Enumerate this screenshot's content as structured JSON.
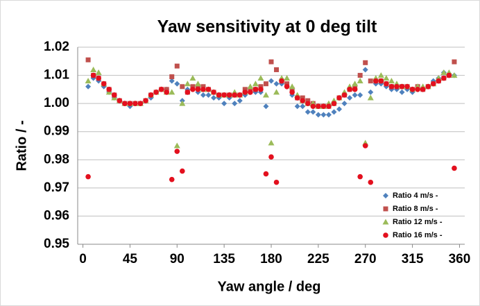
{
  "chart_data": {
    "type": "scatter",
    "title": "Yaw sensitivity at 0 deg tilt",
    "x_label": "Yaw angle / deg",
    "y_label": "Ratio / -",
    "xlim": [
      -5,
      365
    ],
    "xticks": [
      0,
      45,
      90,
      135,
      180,
      225,
      270,
      315,
      360
    ],
    "ylim": [
      0.95,
      1.02
    ],
    "yticks": [
      1.02,
      1.01,
      {
        "value": 1.0,
        "label": "1.00"
      },
      0.99,
      0.98,
      0.97,
      0.96,
      0.95
    ],
    "grid": true,
    "legend": "lower right",
    "x": [
      5,
      10,
      15,
      20,
      25,
      30,
      35,
      40,
      45,
      50,
      55,
      60,
      65,
      70,
      75,
      80,
      85,
      90,
      95,
      100,
      105,
      110,
      115,
      120,
      125,
      130,
      135,
      140,
      145,
      150,
      155,
      160,
      165,
      170,
      175,
      180,
      185,
      190,
      195,
      200,
      205,
      210,
      215,
      220,
      225,
      230,
      235,
      240,
      245,
      250,
      255,
      260,
      265,
      270,
      275,
      280,
      285,
      290,
      295,
      300,
      305,
      310,
      315,
      320,
      325,
      330,
      335,
      340,
      345,
      350,
      355
    ],
    "series": [
      {
        "name": "Ratio 4 m/s -",
        "color": "#4f81bd",
        "marker": "diamond",
        "values": [
          1.006,
          1.009,
          1.008,
          1.006,
          1.004,
          1.002,
          1.001,
          1.0,
          0.999,
          1.0,
          1.0,
          1.001,
          1.002,
          1.004,
          1.005,
          1.005,
          1.008,
          1.007,
          1.001,
          1.005,
          1.005,
          1.004,
          1.003,
          1.003,
          1.002,
          1.002,
          1.0,
          1.002,
          1.0,
          1.001,
          1.003,
          1.004,
          1.004,
          1.004,
          0.999,
          1.008,
          1.007,
          1.007,
          1.006,
          1.003,
          0.999,
          0.999,
          0.997,
          0.997,
          0.996,
          0.996,
          0.996,
          0.997,
          0.998,
          1.0,
          1.002,
          1.003,
          1.003,
          1.012,
          1.004,
          1.007,
          1.007,
          1.006,
          1.005,
          1.005,
          1.004,
          1.005,
          1.004,
          1.005,
          1.005,
          1.006,
          1.008,
          1.009,
          1.011,
          1.01,
          1.01
        ]
      },
      {
        "name": "Ratio 8 m/s -",
        "color": "#c0504d",
        "marker": "square",
        "values": [
          1.0155,
          1.01,
          1.009,
          1.007,
          1.005,
          1.003,
          1.001,
          1.0,
          1.0,
          1.0,
          1.0,
          1.001,
          1.003,
          1.004,
          1.005,
          1.005,
          1.0095,
          1.0133,
          1.006,
          1.004,
          1.006,
          1.006,
          1.006,
          1.005,
          1.004,
          1.003,
          1.003,
          1.003,
          1.003,
          1.003,
          1.005,
          1.005,
          1.005,
          1.006,
          1.007,
          1.0148,
          1.012,
          1.008,
          1.007,
          1.005,
          1.002,
          1.002,
          1.001,
          1.0,
          0.999,
          0.999,
          0.999,
          1.0,
          1.002,
          1.003,
          1.005,
          1.006,
          1.01,
          1.0145,
          1.008,
          1.008,
          1.008,
          1.007,
          1.006,
          1.006,
          1.006,
          1.006,
          1.005,
          1.006,
          1.005,
          1.006,
          1.007,
          1.008,
          1.009,
          1.01,
          1.0148
        ]
      },
      {
        "name": "Ratio 12 m/s -",
        "color": "#9bbb59",
        "marker": "triangle",
        "values": [
          1.008,
          1.012,
          1.011,
          1.007,
          1.004,
          1.002,
          1.001,
          1.0,
          1.0,
          1.0,
          1.0,
          1.001,
          1.003,
          1.004,
          1.005,
          1.004,
          1.004,
          0.985,
          1.0,
          1.007,
          1.009,
          1.007,
          1.005,
          1.005,
          1.004,
          1.003,
          1.003,
          1.003,
          1.004,
          1.003,
          1.004,
          1.006,
          1.007,
          1.009,
          1.003,
          0.986,
          1.004,
          1.009,
          1.009,
          1.006,
          1.003,
          1.001,
          1.0,
          1.0,
          0.999,
          0.999,
          1.0,
          1.001,
          1.002,
          1.004,
          1.006,
          1.007,
          1.008,
          0.986,
          1.002,
          1.009,
          1.01,
          1.009,
          1.008,
          1.007,
          1.006,
          1.006,
          1.005,
          1.006,
          1.006,
          1.006,
          1.007,
          1.009,
          1.011,
          1.011,
          1.01
        ]
      },
      {
        "name": "Ratio 16 m/s -",
        "color": "#e3101e",
        "marker": "circle",
        "values": [
          0.974,
          1.01,
          1.009,
          1.007,
          1.005,
          1.003,
          1.001,
          1.0,
          1.0,
          1.0,
          1.0,
          1.001,
          1.003,
          1.004,
          1.005,
          1.004,
          0.973,
          0.983,
          0.976,
          1.004,
          1.005,
          1.005,
          1.005,
          1.005,
          1.004,
          1.003,
          1.003,
          1.003,
          1.003,
          1.003,
          1.004,
          1.004,
          1.005,
          1.005,
          0.975,
          0.981,
          0.972,
          1.008,
          1.006,
          1.004,
          1.002,
          1.001,
          1.0,
          0.999,
          0.999,
          0.999,
          0.999,
          1.0,
          1.002,
          1.003,
          1.005,
          1.005,
          0.974,
          0.985,
          0.972,
          1.008,
          1.008,
          1.007,
          1.006,
          1.006,
          1.006,
          1.006,
          1.005,
          1.005,
          1.005,
          1.006,
          1.007,
          1.008,
          1.009,
          1.01,
          0.977
        ]
      }
    ]
  }
}
